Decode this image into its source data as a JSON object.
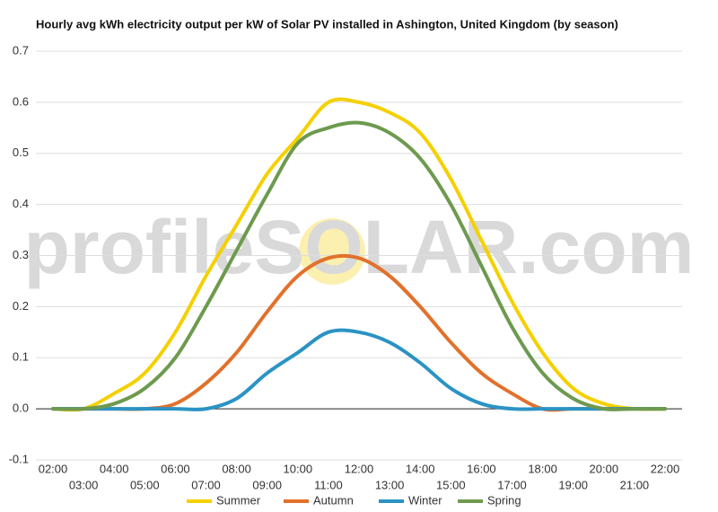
{
  "chart_data": {
    "type": "line",
    "title": "Hourly avg kWh electricity output per kW of Solar PV installed in Ashington, United Kingdom (by season)",
    "watermark": "profileSOLAR.com",
    "categories": [
      "02:00",
      "03:00",
      "04:00",
      "05:00",
      "06:00",
      "07:00",
      "08:00",
      "09:00",
      "10:00",
      "11:00",
      "12:00",
      "13:00",
      "14:00",
      "15:00",
      "16:00",
      "17:00",
      "18:00",
      "19:00",
      "20:00",
      "21:00",
      "22:00"
    ],
    "series": [
      {
        "name": "Summer",
        "color": "#f5d000",
        "values": [
          0,
          0,
          0.03,
          0.07,
          0.15,
          0.26,
          0.36,
          0.46,
          0.53,
          0.6,
          0.6,
          0.58,
          0.54,
          0.45,
          0.33,
          0.21,
          0.11,
          0.04,
          0.01,
          0,
          0
        ]
      },
      {
        "name": "Autumn",
        "color": "#e2712b",
        "values": [
          0,
          0,
          0,
          0,
          0.01,
          0.05,
          0.11,
          0.19,
          0.26,
          0.295,
          0.295,
          0.26,
          0.2,
          0.13,
          0.07,
          0.03,
          0,
          0,
          0,
          0,
          0
        ]
      },
      {
        "name": "Winter",
        "color": "#2b93c4",
        "values": [
          0,
          0,
          0,
          0,
          0,
          0,
          0.02,
          0.07,
          0.11,
          0.15,
          0.15,
          0.13,
          0.09,
          0.04,
          0.01,
          0,
          0,
          0,
          0,
          0,
          0
        ]
      },
      {
        "name": "Spring",
        "color": "#6d9a4f",
        "values": [
          0,
          0,
          0.01,
          0.04,
          0.1,
          0.2,
          0.31,
          0.42,
          0.52,
          0.55,
          0.56,
          0.54,
          0.49,
          0.4,
          0.28,
          0.16,
          0.07,
          0.02,
          0,
          0,
          0
        ]
      }
    ],
    "ylim": [
      -0.1,
      0.7
    ],
    "yticks": [
      -0.1,
      {
        "value": 0,
        "label": "0.0"
      },
      0.1,
      0.2,
      0.3,
      0.4,
      0.5,
      0.6,
      0.7
    ],
    "grid": true
  }
}
